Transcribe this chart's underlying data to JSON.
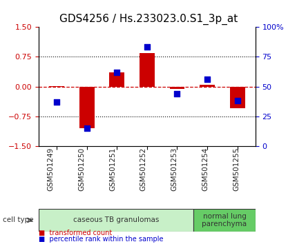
{
  "title": "GDS4256 / Hs.233023.0.S1_3p_at",
  "samples": [
    "GSM501249",
    "GSM501250",
    "GSM501251",
    "GSM501252",
    "GSM501253",
    "GSM501254",
    "GSM501255"
  ],
  "red_bars": [
    0.02,
    -1.05,
    0.35,
    0.85,
    -0.05,
    0.05,
    -0.55
  ],
  "blue_dots": [
    37,
    15,
    62,
    83,
    44,
    56,
    38
  ],
  "ylim_left": [
    -1.5,
    1.5
  ],
  "ylim_right": [
    0,
    100
  ],
  "yticks_left": [
    -1.5,
    -0.75,
    0,
    0.75,
    1.5
  ],
  "yticks_right": [
    0,
    25,
    50,
    75,
    100
  ],
  "ytick_labels_right": [
    "0",
    "25",
    "50",
    "75",
    "100%"
  ],
  "hlines": [
    0.75,
    0,
    -0.75
  ],
  "cell_type_groups": [
    {
      "label": "caseous TB granulomas",
      "start": 0,
      "end": 5,
      "color": "#c8f0c8"
    },
    {
      "label": "normal lung\nparenchyma",
      "start": 5,
      "end": 7,
      "color": "#66cc66"
    }
  ],
  "bar_color": "#cc0000",
  "dot_color": "#0000cc",
  "zero_line_color": "#cc0000",
  "dotted_line_color": "#000000",
  "title_fontsize": 11,
  "tick_fontsize": 8,
  "sample_label_fontsize": 7.5,
  "bar_width": 0.5,
  "dot_size": 35,
  "cell_type_label": "cell type",
  "legend_items": [
    {
      "color": "#cc0000",
      "label": "transformed count"
    },
    {
      "color": "#0000cc",
      "label": "percentile rank within the sample"
    }
  ]
}
